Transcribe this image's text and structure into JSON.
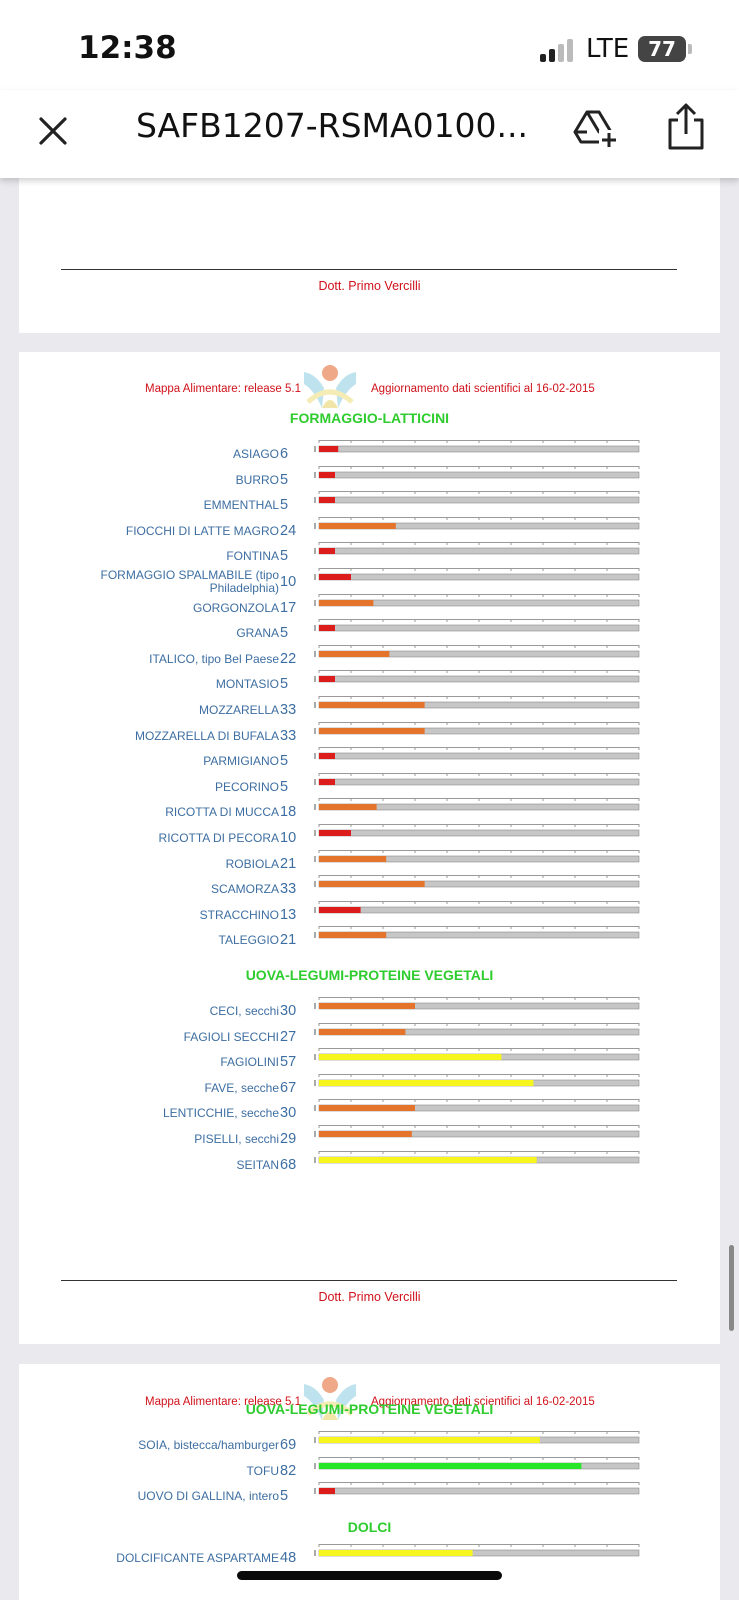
{
  "status_bar": {
    "time": "12:38",
    "network": "LTE",
    "battery": "77"
  },
  "app_bar": {
    "title": "SAFB1207-RSMA0100..."
  },
  "signature": "Dott. Primo Vercilli",
  "header_left": "Mappa Alimentare: release 5.1",
  "header_right": "Aggiornamento dati scientifici al 16-02-2015",
  "colors": {
    "red": "#dd1c1c",
    "orange": "#e4732b",
    "yellow": "#f6f61e",
    "green": "#27e627",
    "track": "#c6c6c6"
  },
  "page2": {
    "sections": [
      {
        "title": "FORMAGGIO-LATTICINI",
        "items": [
          {
            "name": "ASIAGO",
            "value": 6
          },
          {
            "name": "BURRO",
            "value": 5
          },
          {
            "name": "EMMENTHAL",
            "value": 5
          },
          {
            "name": "FIOCCHI DI LATTE MAGRO",
            "value": 24
          },
          {
            "name": "FONTINA",
            "value": 5
          },
          {
            "name": "FORMAGGIO SPALMABILE (tipo Philadelphia)",
            "value": 10
          },
          {
            "name": "GORGONZOLA",
            "value": 17
          },
          {
            "name": "GRANA",
            "value": 5
          },
          {
            "name": "ITALICO, tipo Bel Paese",
            "value": 22
          },
          {
            "name": "MONTASIO",
            "value": 5
          },
          {
            "name": "MOZZARELLA",
            "value": 33
          },
          {
            "name": "MOZZARELLA DI BUFALA",
            "value": 33
          },
          {
            "name": "PARMIGIANO",
            "value": 5
          },
          {
            "name": "PECORINO",
            "value": 5
          },
          {
            "name": "RICOTTA DI MUCCA",
            "value": 18
          },
          {
            "name": "RICOTTA DI PECORA",
            "value": 10
          },
          {
            "name": "ROBIOLA",
            "value": 21
          },
          {
            "name": "SCAMORZA",
            "value": 33
          },
          {
            "name": "STRACCHINO",
            "value": 13
          },
          {
            "name": "TALEGGIO",
            "value": 21
          }
        ]
      },
      {
        "title": "UOVA-LEGUMI-PROTEINE VEGETALI",
        "items": [
          {
            "name": "CECI, secchi",
            "value": 30
          },
          {
            "name": "FAGIOLI SECCHI",
            "value": 27
          },
          {
            "name": "FAGIOLINI",
            "value": 57
          },
          {
            "name": "FAVE, secche",
            "value": 67
          },
          {
            "name": "LENTICCHIE, secche",
            "value": 30
          },
          {
            "name": "PISELLI, secchi",
            "value": 29
          },
          {
            "name": "SEITAN",
            "value": 68
          }
        ]
      }
    ]
  },
  "page3": {
    "sections": [
      {
        "title": "UOVA-LEGUMI-PROTEINE VEGETALI",
        "items": [
          {
            "name": "SOIA, bistecca/hamburger",
            "value": 69
          },
          {
            "name": "TOFU",
            "value": 82
          },
          {
            "name": "UOVO DI GALLINA, intero",
            "value": 5
          }
        ]
      },
      {
        "title": "DOLCI",
        "items": [
          {
            "name": "DOLCIFICANTE ASPARTAME",
            "value": 48
          }
        ]
      }
    ]
  },
  "chart_data": {
    "type": "bar",
    "orientation": "horizontal",
    "xlim": [
      0,
      100
    ],
    "categories": [
      "ASIAGO",
      "BURRO",
      "EMMENTHAL",
      "FIOCCHI DI LATTE MAGRO",
      "FONTINA",
      "FORMAGGIO SPALMABILE (tipo Philadelphia)",
      "GORGONZOLA",
      "GRANA",
      "ITALICO, tipo Bel Paese",
      "MONTASIO",
      "MOZZARELLA",
      "MOZZARELLA DI BUFALA",
      "PARMIGIANO",
      "PECORINO",
      "RICOTTA DI MUCCA",
      "RICOTTA DI PECORA",
      "ROBIOLA",
      "SCAMORZA",
      "STRACCHINO",
      "TALEGGIO",
      "CECI, secchi",
      "FAGIOLI SECCHI",
      "FAGIOLINI",
      "FAVE, secche",
      "LENTICCHIE, secche",
      "PISELLI, secchi",
      "SEITAN",
      "SOIA, bistecca/hamburger",
      "TOFU",
      "UOVO DI GALLINA, intero",
      "DOLCIFICANTE ASPARTAME"
    ],
    "values": [
      6,
      5,
      5,
      24,
      5,
      10,
      17,
      5,
      22,
      5,
      33,
      33,
      5,
      5,
      18,
      10,
      21,
      33,
      13,
      21,
      30,
      27,
      57,
      67,
      30,
      29,
      68,
      69,
      82,
      5,
      48
    ]
  }
}
